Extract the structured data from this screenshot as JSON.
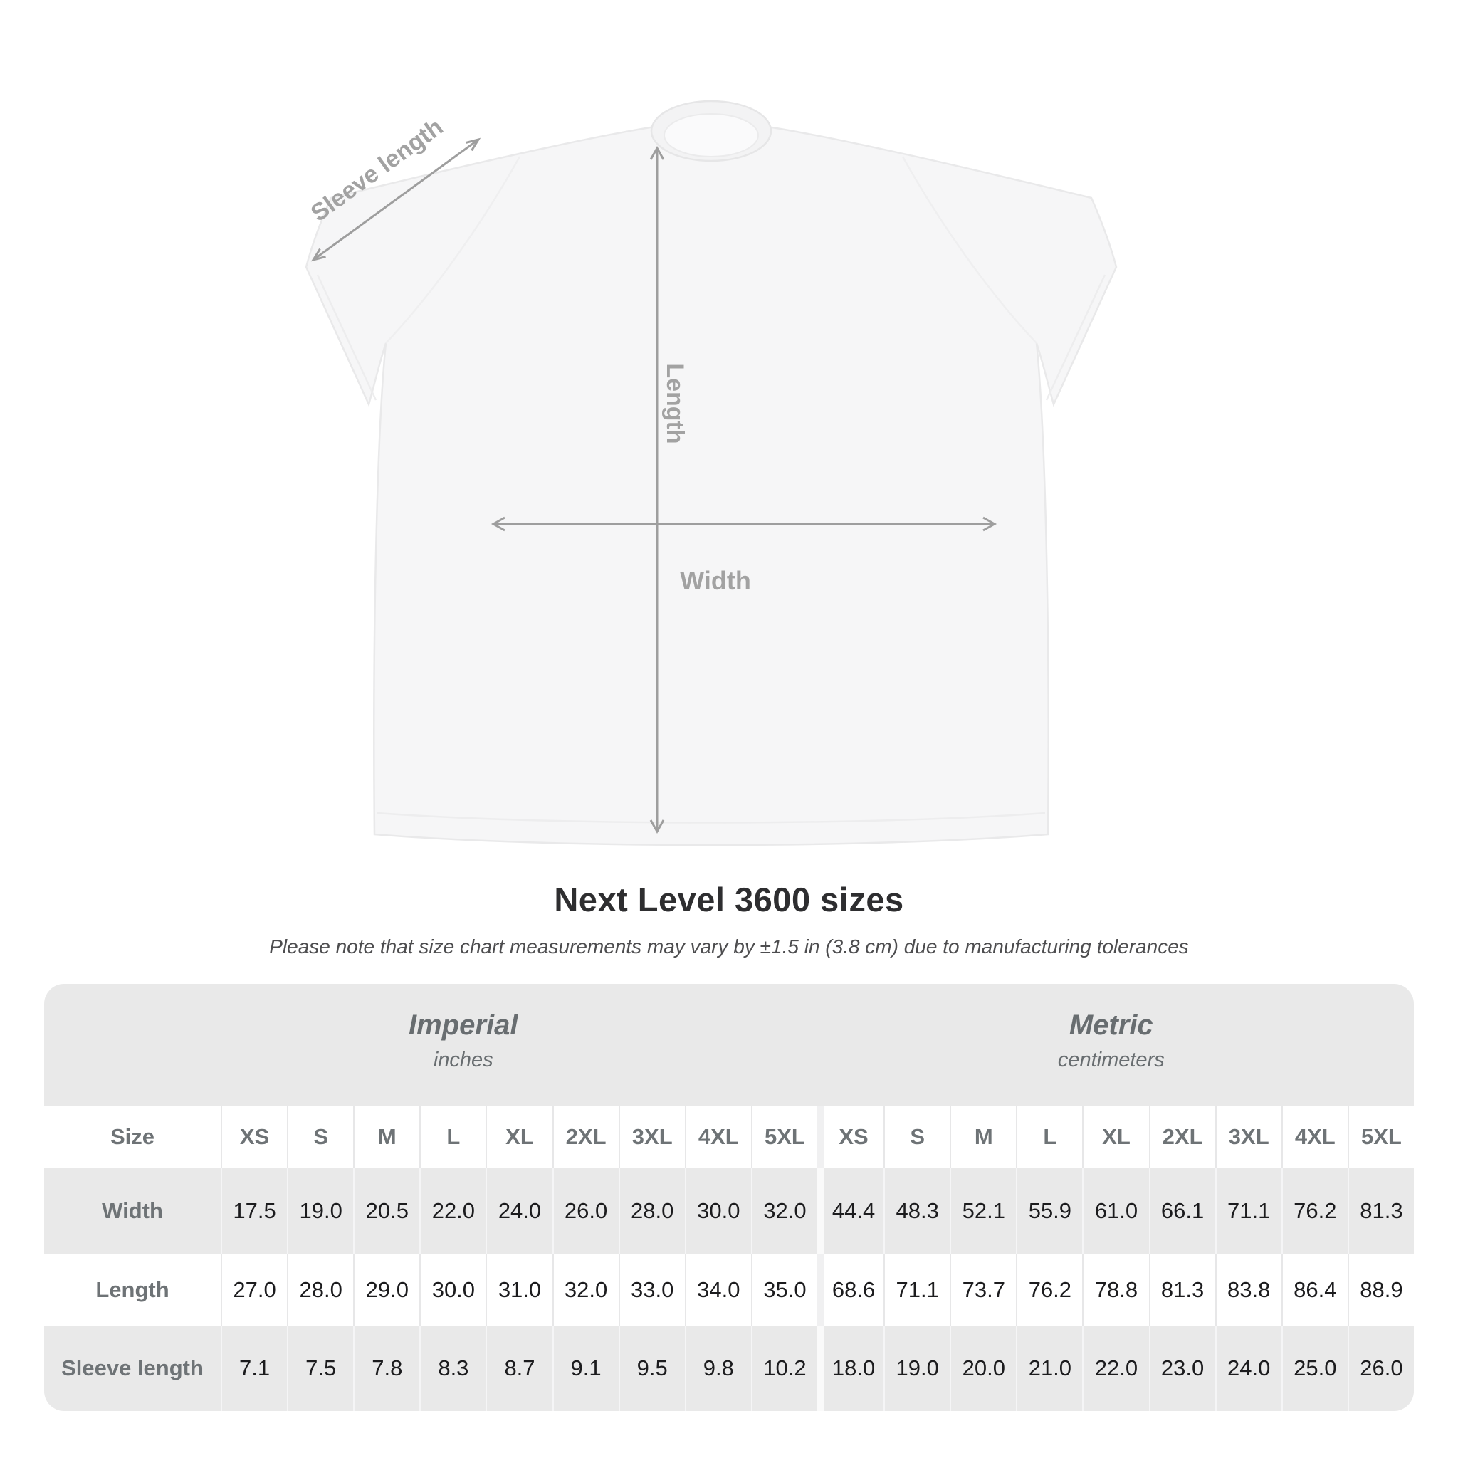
{
  "figure": {
    "sleeve_length_label": "Sleeve length",
    "length_label": "Length",
    "width_label": "Width"
  },
  "chart_data": {
    "type": "table",
    "title": "Next Level 3600 sizes",
    "note": "Please note that size chart measurements may vary by ±1.5 in (3.8 cm) due to manufacturing tolerances",
    "corner_label": "Size",
    "unit_groups": [
      {
        "name": "Imperial",
        "unit": "inches"
      },
      {
        "name": "Metric",
        "unit": "centimeters"
      }
    ],
    "columns": [
      "XS",
      "S",
      "M",
      "L",
      "XL",
      "2XL",
      "3XL",
      "4XL",
      "5XL",
      "XS",
      "S",
      "M",
      "L",
      "XL",
      "2XL",
      "3XL",
      "4XL",
      "5XL"
    ],
    "rows": [
      {
        "label": "Width",
        "values": [
          "17.5",
          "19.0",
          "20.5",
          "22.0",
          "24.0",
          "26.0",
          "28.0",
          "30.0",
          "32.0",
          "44.4",
          "48.3",
          "52.1",
          "55.9",
          "61.0",
          "66.1",
          "71.1",
          "76.2",
          "81.3"
        ]
      },
      {
        "label": "Length",
        "values": [
          "27.0",
          "28.0",
          "29.0",
          "30.0",
          "31.0",
          "32.0",
          "33.0",
          "34.0",
          "35.0",
          "68.6",
          "71.1",
          "73.7",
          "76.2",
          "78.8",
          "81.3",
          "83.8",
          "86.4",
          "88.9"
        ]
      },
      {
        "label": "Sleeve length",
        "values": [
          "7.1",
          "7.5",
          "7.8",
          "8.3",
          "8.7",
          "9.1",
          "9.5",
          "9.8",
          "10.2",
          "18.0",
          "19.0",
          "20.0",
          "21.0",
          "22.0",
          "23.0",
          "24.0",
          "25.0",
          "26.0"
        ]
      }
    ],
    "colors": {
      "table_bg": "#e9e9e9",
      "row_alt_bg": "#ffffff",
      "value_text": "#1c1c1e",
      "header_text": "#686d70",
      "figure_lines": "#9e9e9e",
      "title_text": "#2e2e30"
    }
  }
}
